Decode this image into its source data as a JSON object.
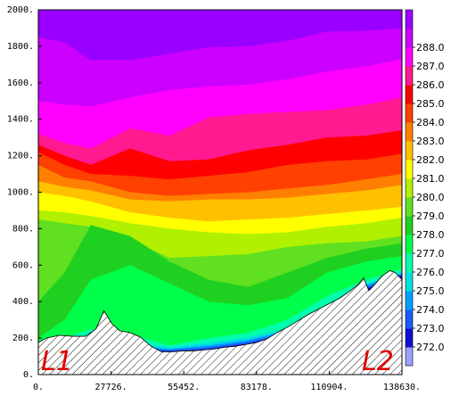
{
  "chart_data": {
    "type": "heatmap",
    "title": "",
    "xlabel": "",
    "ylabel": "",
    "xlim": [
      0,
      138630
    ],
    "ylim": [
      0,
      2000
    ],
    "x_ticks": [
      "0.",
      "27726.",
      "55452.",
      "83178.",
      "110904.",
      "138630."
    ],
    "y_ticks": [
      "0.",
      "200.",
      "400.",
      "600.",
      "800.",
      "1000.",
      "1200.",
      "1400.",
      "1600.",
      "1800.",
      "2000."
    ],
    "colorbar": {
      "labels": [
        "272.0",
        "273.0",
        "274.0",
        "275.0",
        "276.0",
        "277.0",
        "278.0",
        "279.0",
        "280.0",
        "281.0",
        "282.0",
        "283.0",
        "284.0",
        "285.0",
        "286.0",
        "287.0",
        "288.0"
      ],
      "colors": [
        "#9aa0ff",
        "#1010d0",
        "#1a5cff",
        "#00a0ff",
        "#00e0e0",
        "#00ffaa",
        "#00ff4a",
        "#20d020",
        "#60e020",
        "#b0f000",
        "#ffff00",
        "#ffc000",
        "#ff8000",
        "#ff4000",
        "#ff0000",
        "#ff1a90",
        "#ff00ff",
        "#cc00ff",
        "#9900ff"
      ]
    },
    "contours": [
      {
        "level": 288,
        "color": "#9900ff",
        "x": [
          0,
          10000,
          20000,
          35000,
          50000,
          65000,
          80000,
          95000,
          110000,
          125000,
          138630
        ],
        "y": [
          2000,
          2000,
          2000,
          2000,
          2000,
          2000,
          2000,
          2000,
          2000,
          2000,
          2000
        ]
      },
      {
        "level": 287,
        "color": "#cc00ff",
        "x": [
          0,
          10000,
          20000,
          35000,
          50000,
          65000,
          80000,
          95000,
          110000,
          125000,
          138630
        ],
        "y": [
          1850,
          1820,
          1725,
          1725,
          1760,
          1795,
          1800,
          1830,
          1880,
          1885,
          1900
        ]
      },
      {
        "level": 286,
        "color": "#ff00ff",
        "x": [
          0,
          10000,
          20000,
          35000,
          50000,
          65000,
          80000,
          95000,
          110000,
          125000,
          138630
        ],
        "y": [
          1500,
          1480,
          1470,
          1520,
          1560,
          1580,
          1590,
          1620,
          1660,
          1690,
          1730
        ]
      },
      {
        "level": 285,
        "color": "#ff1a90",
        "x": [
          0,
          10000,
          20000,
          35000,
          50000,
          65000,
          80000,
          95000,
          110000,
          125000,
          138630
        ],
        "y": [
          1320,
          1270,
          1240,
          1350,
          1310,
          1410,
          1430,
          1440,
          1450,
          1480,
          1520
        ]
      },
      {
        "level": 284,
        "color": "#ff0000",
        "x": [
          0,
          10000,
          20000,
          35000,
          50000,
          65000,
          80000,
          95000,
          110000,
          125000,
          138630
        ],
        "y": [
          1260,
          1200,
          1150,
          1240,
          1170,
          1180,
          1230,
          1260,
          1300,
          1310,
          1340
        ]
      },
      {
        "level": 283,
        "color": "#ff4000",
        "x": [
          0,
          10000,
          20000,
          35000,
          50000,
          65000,
          80000,
          95000,
          110000,
          125000,
          138630
        ],
        "y": [
          1220,
          1150,
          1100,
          1090,
          1070,
          1090,
          1110,
          1150,
          1170,
          1180,
          1210
        ]
      },
      {
        "level": 282,
        "color": "#ff8000",
        "x": [
          0,
          10000,
          20000,
          35000,
          50000,
          65000,
          80000,
          95000,
          110000,
          125000,
          138630
        ],
        "y": [
          1150,
          1080,
          1060,
          1000,
          980,
          990,
          1000,
          1020,
          1040,
          1070,
          1100
        ]
      },
      {
        "level": 281,
        "color": "#ffc000",
        "x": [
          0,
          10000,
          20000,
          35000,
          50000,
          65000,
          80000,
          95000,
          110000,
          125000,
          138630
        ],
        "y": [
          1060,
          1030,
          1010,
          960,
          950,
          960,
          960,
          970,
          990,
          1010,
          1040
        ]
      },
      {
        "level": 280,
        "color": "#ffff00",
        "x": [
          0,
          10000,
          20000,
          35000,
          50000,
          65000,
          80000,
          95000,
          110000,
          125000,
          138630
        ],
        "y": [
          1000,
          980,
          950,
          890,
          860,
          840,
          850,
          860,
          880,
          900,
          920
        ]
      },
      {
        "level": 279,
        "color": "#b0f000",
        "x": [
          0,
          10000,
          20000,
          35000,
          50000,
          65000,
          80000,
          95000,
          110000,
          125000,
          138630
        ],
        "y": [
          900,
          890,
          870,
          830,
          800,
          780,
          770,
          780,
          810,
          830,
          860
        ]
      },
      {
        "level": 278,
        "color": "#60e020",
        "x": [
          0,
          10000,
          20000,
          35000,
          50000,
          65000,
          80000,
          95000,
          110000,
          125000,
          138630
        ],
        "y": [
          850,
          830,
          810,
          740,
          640,
          650,
          660,
          700,
          720,
          730,
          760
        ]
      },
      {
        "level": 277,
        "color": "#20d020",
        "x": [
          0,
          10000,
          20000,
          35000,
          50000,
          65000,
          80000,
          95000,
          110000,
          125000,
          138630
        ],
        "y": [
          400,
          560,
          820,
          760,
          620,
          520,
          480,
          560,
          640,
          690,
          720
        ]
      },
      {
        "level": 276,
        "color": "#00ff4a",
        "x": [
          0,
          10000,
          20000,
          35000,
          50000,
          65000,
          80000,
          95000,
          110000,
          125000,
          138630
        ],
        "y": [
          200,
          300,
          520,
          600,
          500,
          400,
          380,
          420,
          560,
          620,
          650
        ]
      },
      {
        "level": 275,
        "color": "#00ffaa",
        "x": [
          0,
          10000,
          20000,
          35000,
          50000,
          65000,
          80000,
          95000,
          110000,
          125000,
          138630
        ],
        "y": [
          180,
          200,
          250,
          220,
          160,
          200,
          230,
          300,
          430,
          520,
          580
        ]
      },
      {
        "level": 274,
        "color": "#00e0e0",
        "x": [
          0,
          10000,
          20000,
          35000,
          50000,
          65000,
          80000,
          95000,
          110000,
          125000,
          138630
        ],
        "y": [
          170,
          180,
          220,
          180,
          150,
          175,
          205,
          250,
          380,
          500,
          560
        ]
      },
      {
        "level": 273,
        "color": "#00a0ff",
        "x": [
          0,
          10000,
          20000,
          35000,
          50000,
          65000,
          80000,
          95000,
          110000,
          125000,
          138630
        ],
        "y": [
          160,
          170,
          200,
          160,
          140,
          160,
          190,
          240,
          370,
          490,
          555
        ]
      },
      {
        "level": 272,
        "color": "#1a5cff",
        "x": [
          0,
          10000,
          20000,
          35000,
          50000,
          65000,
          80000,
          95000,
          110000,
          125000,
          138630
        ],
        "y": [
          150,
          160,
          190,
          150,
          135,
          150,
          180,
          230,
          360,
          480,
          550
        ]
      },
      {
        "level": 271,
        "color": "#1010d0",
        "x": [
          0,
          10000,
          20000,
          35000,
          50000,
          65000,
          80000,
          95000,
          110000,
          125000,
          138630
        ],
        "y": [
          140,
          150,
          180,
          140,
          125,
          140,
          170,
          220,
          350,
          470,
          545
        ]
      }
    ],
    "terrain": {
      "x": [
        0,
        3000,
        8000,
        13000,
        18000,
        22000,
        25000,
        28000,
        31000,
        35000,
        39000,
        43000,
        47000,
        51000,
        55000,
        59000,
        63000,
        67000,
        71000,
        75000,
        79000,
        83000,
        87000,
        91000,
        95000,
        99000,
        103000,
        107000,
        111000,
        115000,
        119000,
        122000,
        124000,
        126000,
        128000,
        131000,
        134000,
        136000,
        138630
      ],
      "y": [
        175,
        200,
        215,
        210,
        210,
        250,
        350,
        280,
        240,
        230,
        205,
        155,
        125,
        125,
        130,
        130,
        135,
        140,
        150,
        155,
        165,
        175,
        195,
        230,
        260,
        295,
        330,
        360,
        390,
        420,
        460,
        495,
        530,
        460,
        490,
        540,
        570,
        560,
        520
      ]
    },
    "labels": {
      "left": "L1",
      "right": "L2"
    }
  }
}
